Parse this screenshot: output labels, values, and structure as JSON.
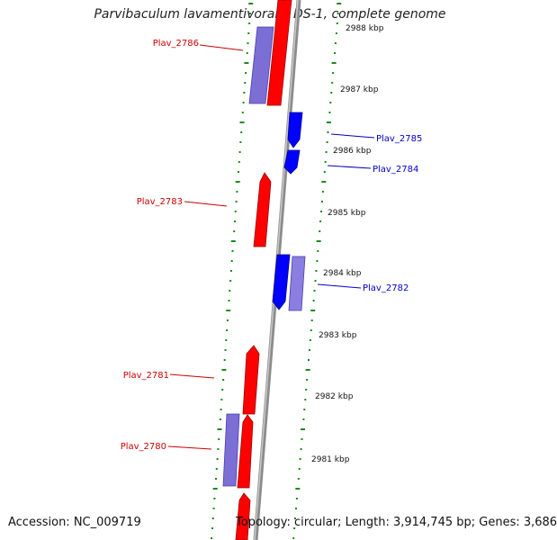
{
  "title": "Parvibaculum lavamentivorans DS-1, complete genome",
  "footer": {
    "accession": "Accession: NC_009719",
    "topology": "Topology: circular; Length: 3,914,745 bp; Genes: 3,686"
  },
  "colors": {
    "forward_gene": "#ff0000",
    "forward_gene_light": "#7b6fd6",
    "reverse_gene": "#0000ff",
    "reverse_gene_light": "#8a7fe0",
    "backbone": "#8c8c8c",
    "tick": "#1a8a1a",
    "forward_label": "#cc0000",
    "reverse_label": "#0000cc"
  },
  "scale_labels": [
    "2988 kbp",
    "2987 kbp",
    "2986 kbp",
    "2985 kbp",
    "2984 kbp",
    "2983 kbp",
    "2982 kbp",
    "2981 kbp"
  ],
  "gene_labels": [
    {
      "text": "Plav_2786",
      "strand": "forward"
    },
    {
      "text": "Plav_2785",
      "strand": "reverse"
    },
    {
      "text": "Plav_2784",
      "strand": "reverse"
    },
    {
      "text": "Plav_2783",
      "strand": "forward"
    },
    {
      "text": "Plav_2782",
      "strand": "reverse"
    },
    {
      "text": "Plav_2781",
      "strand": "forward"
    },
    {
      "text": "Plav_2780",
      "strand": "forward"
    }
  ]
}
